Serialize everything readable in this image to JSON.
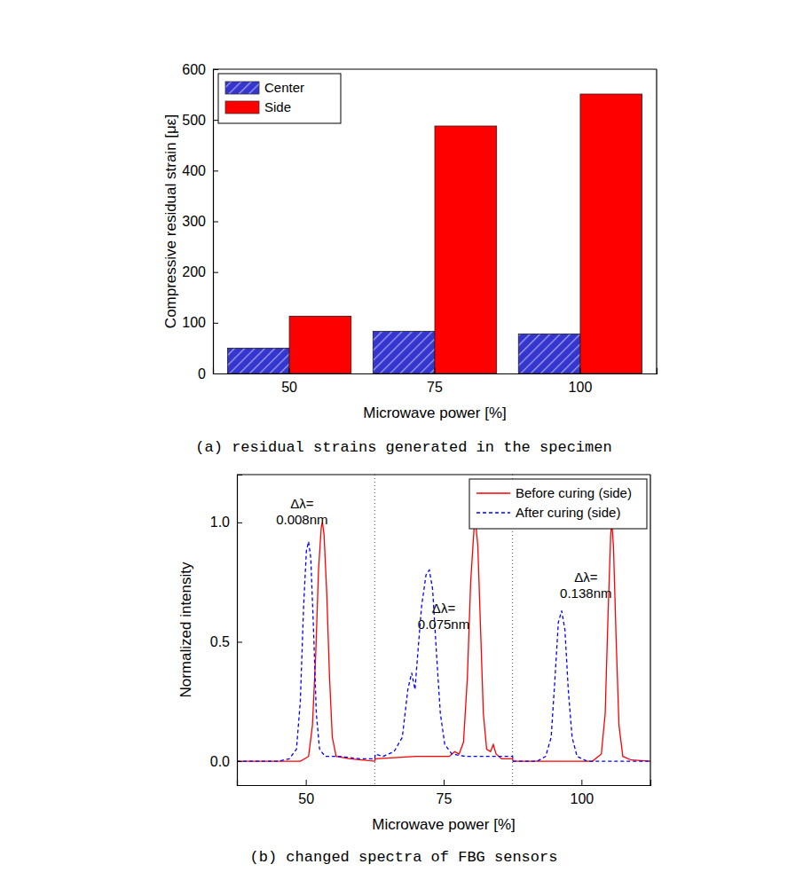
{
  "chart_data": [
    {
      "type": "bar",
      "title": "(a) residual strains generated in the specimen",
      "x_label": "Microwave power [%]",
      "y_label": "Compressive residual strain [με]",
      "categories": [
        "50",
        "75",
        "100"
      ],
      "series": [
        {
          "name": "Center",
          "color": "#3535d0",
          "values": [
            50,
            83,
            78
          ]
        },
        {
          "name": "Side",
          "color": "#ff0000",
          "values": [
            113,
            488,
            551
          ]
        }
      ],
      "ylim": [
        0,
        600
      ],
      "yticks": [
        0,
        100,
        200,
        300,
        400,
        500,
        600
      ],
      "legend": "upper left"
    },
    {
      "type": "line",
      "title": "(b) changed spectra of FBG sensors",
      "x_label": "Microwave power [%]",
      "y_label": "Normalized intensity",
      "xlim": [
        37.5,
        112.5
      ],
      "xticks": [
        50,
        75,
        100
      ],
      "ylim": [
        -0.1,
        1.2
      ],
      "yticks": [
        {
          "value": 0,
          "label": "0.0"
        },
        {
          "value": 0.5,
          "label": "0.5"
        },
        {
          "value": 1,
          "label": "1.0"
        }
      ],
      "vlines": [
        62.5,
        87.5
      ],
      "legend": "upper right",
      "annotations": [
        {
          "text": [
            "Δλ=",
            "0.008nm"
          ],
          "x": 49.3,
          "y": 1.06
        },
        {
          "text": [
            "Δλ=",
            "0.075nm"
          ],
          "x": 75,
          "y": 0.62
        },
        {
          "text": [
            "Δλ=",
            "0.138nm"
          ],
          "x": 100.8,
          "y": 0.75
        }
      ],
      "series": [
        {
          "name": "Before curing (side)",
          "color": "#ff0000",
          "line_style": "solid",
          "x": [
            37.5,
            45,
            49,
            50.5,
            51.2,
            51.8,
            52.3,
            52.8,
            53.0,
            53.3,
            53.8,
            54.3,
            54.8,
            55.5,
            58,
            62.5,
            62.6,
            70,
            76,
            77,
            77.8,
            78.6,
            79.3,
            79.9,
            80.5,
            80.8,
            81.2,
            81.7,
            82.2,
            82.8,
            83.5,
            84.0,
            84.5,
            85.5,
            87.5,
            87.6,
            92,
            102,
            103.6,
            104.3,
            104.8,
            105.3,
            105.5,
            105.8,
            106.3,
            106.8,
            107.5,
            109,
            112.5
          ],
          "values": [
            0,
            0,
            0,
            0.02,
            0.15,
            0.45,
            0.8,
            0.98,
            1.0,
            0.95,
            0.7,
            0.35,
            0.1,
            0.02,
            0.01,
            0.0,
            0.01,
            0.02,
            0.02,
            0.04,
            0.03,
            0.08,
            0.35,
            0.75,
            0.97,
            1.0,
            0.9,
            0.55,
            0.2,
            0.05,
            0.04,
            0.07,
            0.03,
            0.01,
            0.01,
            0.0,
            0.0,
            0.0,
            0.03,
            0.2,
            0.6,
            0.95,
            1.0,
            0.9,
            0.5,
            0.15,
            0.02,
            0.005,
            0
          ]
        },
        {
          "name": "After curing (side)",
          "color": "#0000ff",
          "line_style": "dashed",
          "x": [
            37.5,
            45,
            47,
            48.3,
            49.0,
            49.6,
            50.1,
            50.5,
            50.9,
            51.4,
            51.9,
            52.5,
            53.5,
            56,
            60,
            62.5,
            62.6,
            64,
            66,
            67.5,
            68.5,
            69.2,
            69.8,
            70.3,
            71,
            71.8,
            72.4,
            73,
            73.7,
            74.4,
            75.2,
            76.5,
            79,
            83,
            87.5,
            87.6,
            92,
            93.5,
            94.5,
            95.2,
            95.8,
            96.4,
            97,
            97.6,
            98.3,
            99.2,
            101,
            112.5
          ],
          "values": [
            0,
            0,
            0.01,
            0.05,
            0.25,
            0.65,
            0.88,
            0.92,
            0.85,
            0.55,
            0.2,
            0.05,
            0.02,
            0.02,
            0.01,
            0.01,
            0.03,
            0.02,
            0.04,
            0.1,
            0.3,
            0.37,
            0.3,
            0.45,
            0.65,
            0.78,
            0.8,
            0.72,
            0.45,
            0.2,
            0.07,
            0.03,
            0.02,
            0.02,
            0.02,
            0.0,
            0.0,
            0.02,
            0.1,
            0.35,
            0.58,
            0.63,
            0.55,
            0.3,
            0.1,
            0.02,
            0.0,
            0
          ]
        }
      ]
    }
  ]
}
